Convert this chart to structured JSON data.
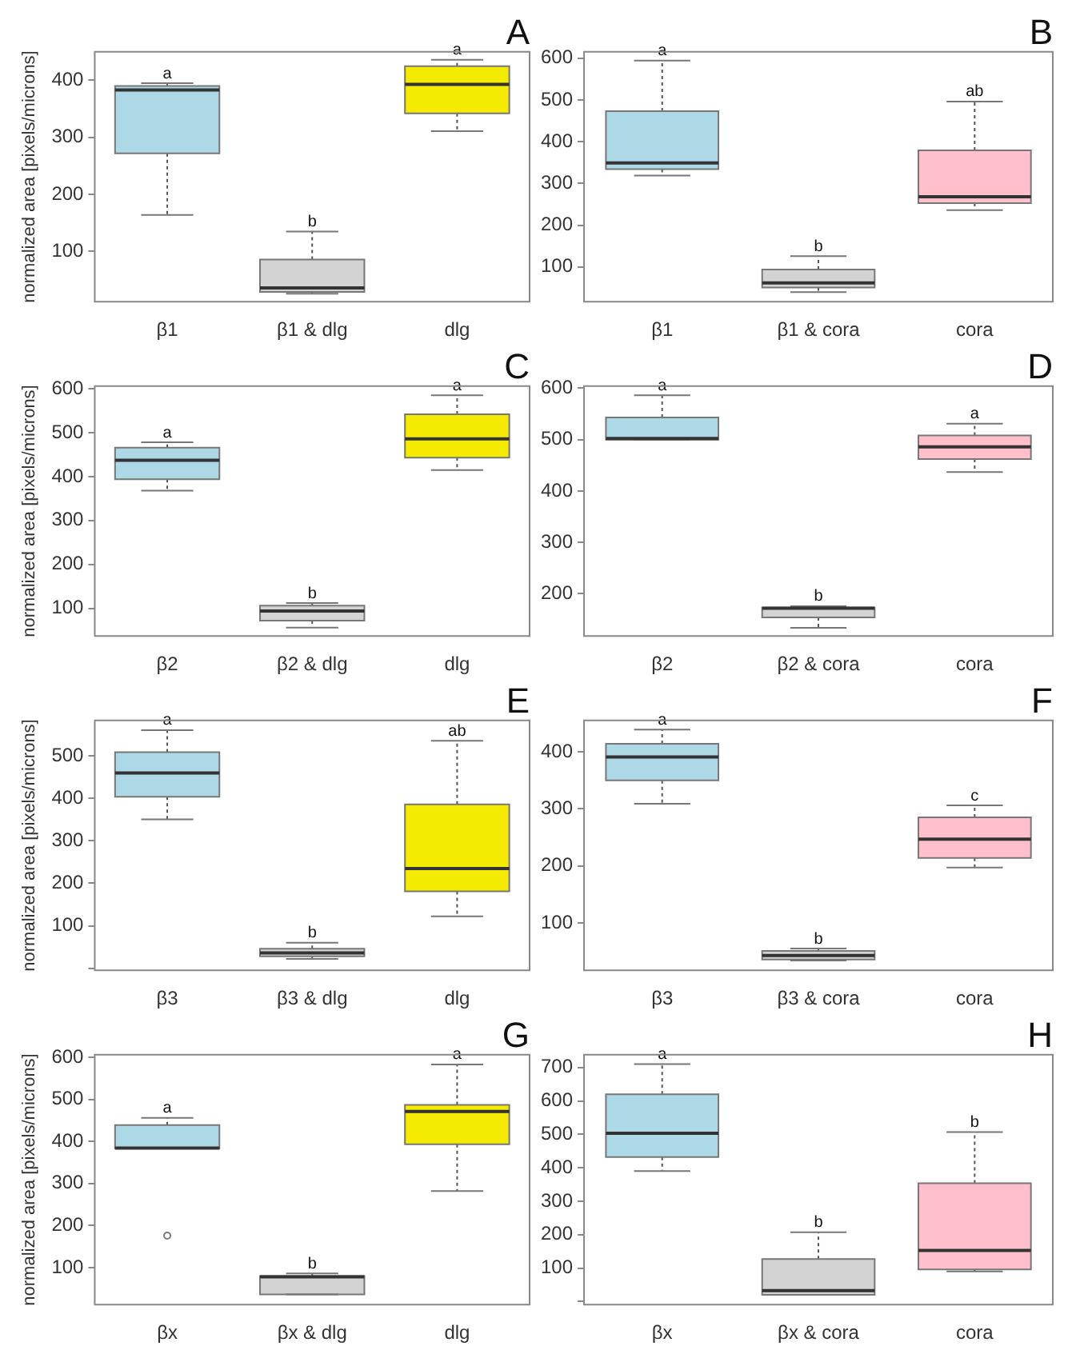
{
  "chart_data": [
    {
      "type": "box",
      "title": "A",
      "ylabel": "normalized area [pixels/microns]",
      "categories": [
        "β1",
        "β1 & dlg",
        "dlg"
      ],
      "colors": [
        "#add8e6",
        "#d3d3d3",
        "#f5eb00"
      ],
      "ylim": [
        12,
        450
      ],
      "yticks": [
        100,
        200,
        300,
        400
      ],
      "boxes": [
        {
          "low": 164,
          "q1": 272,
          "median": 383,
          "q3": 390,
          "high": 395
        },
        {
          "low": 26,
          "q1": 29,
          "median": 36,
          "q3": 86,
          "high": 135
        },
        {
          "low": 311,
          "q1": 342,
          "median": 393,
          "q3": 425,
          "high": 436
        }
      ],
      "annotations": [
        {
          "text": "a",
          "x": "β1",
          "y": 395
        },
        {
          "text": "b",
          "x": "β1 & dlg",
          "y": 135
        },
        {
          "text": "a",
          "x": "dlg",
          "y": 436
        }
      ]
    },
    {
      "type": "box",
      "title": "B",
      "categories": [
        "β1",
        "β1 & cora",
        "cora"
      ],
      "colors": [
        "#add8e6",
        "#d3d3d3",
        "#ffc0cb"
      ],
      "ylim": [
        17,
        615
      ],
      "yticks": [
        100,
        200,
        300,
        400,
        500,
        600
      ],
      "boxes": [
        {
          "low": 319,
          "q1": 334,
          "median": 349,
          "q3": 473,
          "high": 594
        },
        {
          "low": 40,
          "q1": 51,
          "median": 62,
          "q3": 94,
          "high": 126
        },
        {
          "low": 236,
          "q1": 253,
          "median": 268,
          "q3": 379,
          "high": 496
        }
      ],
      "annotations": [
        {
          "text": "a",
          "x": "β1",
          "y": 594
        },
        {
          "text": "b",
          "x": "β1 & cora",
          "y": 126
        },
        {
          "text": "ab",
          "x": "cora",
          "y": 496
        }
      ]
    },
    {
      "type": "box",
      "title": "C",
      "ylabel": "normalized area [pixels/microns]",
      "categories": [
        "β2",
        "β2 & dlg",
        "dlg"
      ],
      "colors": [
        "#add8e6",
        "#d3d3d3",
        "#f5eb00"
      ],
      "ylim": [
        37,
        606
      ],
      "yticks": [
        100,
        200,
        300,
        400,
        500,
        600
      ],
      "boxes": [
        {
          "low": 368,
          "q1": 394,
          "median": 437,
          "q3": 466,
          "high": 478
        },
        {
          "low": 56,
          "q1": 72,
          "median": 94,
          "q3": 106,
          "high": 112
        },
        {
          "low": 415,
          "q1": 443,
          "median": 486,
          "q3": 542,
          "high": 585
        }
      ],
      "annotations": [
        {
          "text": "a",
          "x": "β2",
          "y": 478
        },
        {
          "text": "b",
          "x": "β2 & dlg",
          "y": 112
        },
        {
          "text": "a",
          "x": "dlg",
          "y": 585
        }
      ]
    },
    {
      "type": "box",
      "title": "D",
      "categories": [
        "β2",
        "β2 & cora",
        "cora"
      ],
      "colors": [
        "#add8e6",
        "#d3d3d3",
        "#ffc0cb"
      ],
      "ylim": [
        118,
        604
      ],
      "yticks": [
        200,
        300,
        400,
        500,
        600
      ],
      "boxes": [
        {
          "low": 500,
          "q1": 500,
          "median": 502,
          "q3": 543,
          "high": 586
        },
        {
          "low": 134,
          "q1": 154,
          "median": 172,
          "q3": 173,
          "high": 176
        },
        {
          "low": 437,
          "q1": 462,
          "median": 486,
          "q3": 508,
          "high": 531
        }
      ],
      "annotations": [
        {
          "text": "a",
          "x": "β2",
          "y": 586
        },
        {
          "text": "b",
          "x": "β2 & cora",
          "y": 176
        },
        {
          "text": "a",
          "x": "cora",
          "y": 531
        }
      ]
    },
    {
      "type": "box",
      "title": "E",
      "ylabel": "normalized area [pixels/microns]",
      "categories": [
        "β3",
        "β3 & dlg",
        "dlg"
      ],
      "colors": [
        "#add8e6",
        "#d3d3d3",
        "#f5eb00"
      ],
      "ylim": [
        -5,
        584
      ],
      "yticks": [
        {
          "value": 0,
          "label": null
        },
        100,
        200,
        300,
        400,
        500
      ],
      "boxes": [
        {
          "low": 351,
          "q1": 404,
          "median": 460,
          "q3": 509,
          "high": 561
        },
        {
          "low": 22,
          "q1": 28,
          "median": 36,
          "q3": 46,
          "high": 60
        },
        {
          "low": 122,
          "q1": 181,
          "median": 235,
          "q3": 386,
          "high": 536
        }
      ],
      "annotations": [
        {
          "text": "a",
          "x": "β3",
          "y": 561
        },
        {
          "text": "b",
          "x": "β3 & dlg",
          "y": 60
        },
        {
          "text": "ab",
          "x": "dlg",
          "y": 536
        }
      ]
    },
    {
      "type": "box",
      "title": "F",
      "categories": [
        "β3",
        "β3 & cora",
        "cora"
      ],
      "colors": [
        "#add8e6",
        "#d3d3d3",
        "#ffc0cb"
      ],
      "ylim": [
        17,
        455
      ],
      "yticks": [
        100,
        200,
        300,
        400
      ],
      "boxes": [
        {
          "low": 309,
          "q1": 350,
          "median": 391,
          "q3": 414,
          "high": 439
        },
        {
          "low": 34,
          "q1": 36,
          "median": 43,
          "q3": 51,
          "high": 55
        },
        {
          "low": 197,
          "q1": 214,
          "median": 247,
          "q3": 285,
          "high": 306
        }
      ],
      "annotations": [
        {
          "text": "a",
          "x": "β3",
          "y": 439
        },
        {
          "text": "b",
          "x": "β3 & cora",
          "y": 55
        },
        {
          "text": "c",
          "x": "cora",
          "y": 306
        }
      ]
    },
    {
      "type": "box",
      "title": "G",
      "ylabel": "normalized area [pixels/microns]",
      "categories": [
        "βx",
        "βx & dlg",
        "dlg"
      ],
      "colors": [
        "#add8e6",
        "#d3d3d3",
        "#f5eb00"
      ],
      "ylim": [
        12,
        606
      ],
      "yticks": [
        100,
        200,
        300,
        400,
        500,
        600
      ],
      "boxes": [
        {
          "low": 383,
          "q1": 383,
          "median": 384,
          "q3": 439,
          "high": 456,
          "outliers": [
            176
          ]
        },
        {
          "low": 36,
          "q1": 36,
          "median": 78,
          "q3": 80,
          "high": 86
        },
        {
          "low": 282,
          "q1": 393,
          "median": 471,
          "q3": 487,
          "high": 583
        }
      ],
      "annotations": [
        {
          "text": "a",
          "x": "βx",
          "y": 456
        },
        {
          "text": "b",
          "x": "βx & dlg",
          "y": 86
        },
        {
          "text": "a",
          "x": "dlg",
          "y": 583
        }
      ]
    },
    {
      "type": "box",
      "title": "H",
      "categories": [
        "βx",
        "βx & cora",
        "cora"
      ],
      "colors": [
        "#add8e6",
        "#d3d3d3",
        "#ffc0cb"
      ],
      "ylim": [
        -9,
        738
      ],
      "yticks": [
        {
          "value": 0,
          "label": null
        },
        100,
        200,
        300,
        400,
        500,
        600,
        700
      ],
      "boxes": [
        {
          "low": 390,
          "q1": 432,
          "median": 503,
          "q3": 620,
          "high": 710
        },
        {
          "low": 20,
          "q1": 20,
          "median": 33,
          "q3": 127,
          "high": 207
        },
        {
          "low": 90,
          "q1": 96,
          "median": 153,
          "q3": 354,
          "high": 507
        }
      ],
      "annotations": [
        {
          "text": "a",
          "x": "βx",
          "y": 710
        },
        {
          "text": "b",
          "x": "βx & cora",
          "y": 207
        },
        {
          "text": "b",
          "x": "cora",
          "y": 507
        }
      ]
    }
  ]
}
